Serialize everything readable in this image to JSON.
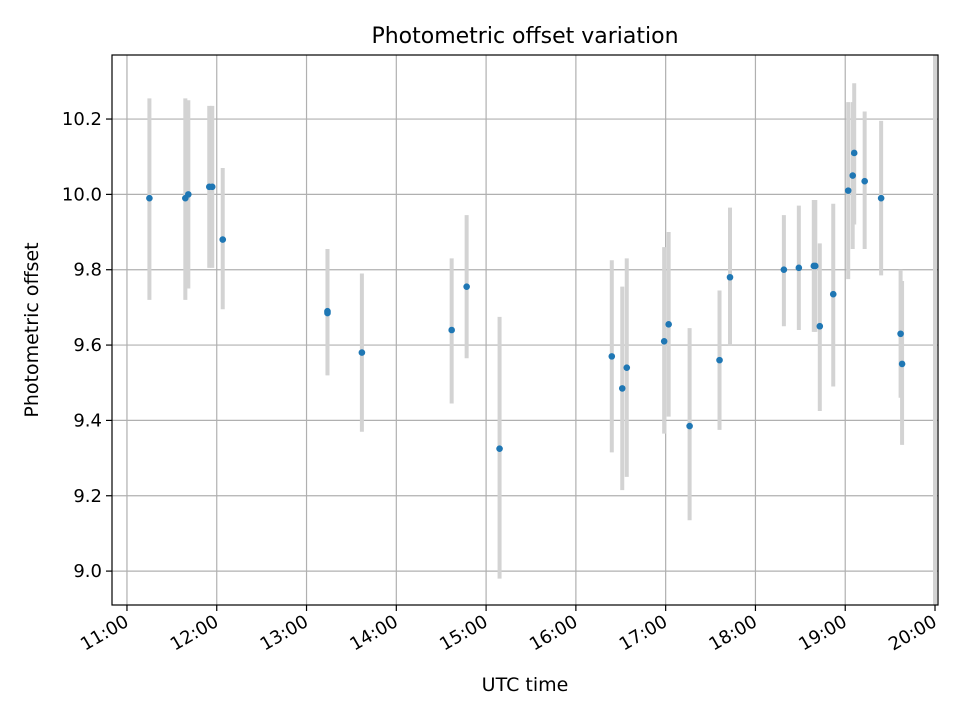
{
  "chart_data": {
    "type": "scatter",
    "title": "Photometric offset variation",
    "xlabel": "UTC time",
    "ylabel": "Photometric offset",
    "x_tick_labels": [
      "11:00",
      "12:00",
      "13:00",
      "14:00",
      "15:00",
      "16:00",
      "17:00",
      "18:00",
      "19:00",
      "20:00"
    ],
    "y_tick_labels": [
      "9.0",
      "9.2",
      "9.4",
      "9.6",
      "9.8",
      "10.0",
      "10.2"
    ],
    "xlim": [
      "10:50",
      "20:02"
    ],
    "ylim": [
      8.91,
      10.37
    ],
    "grid": true,
    "errorbar_color": "#d3d3d3",
    "marker_color": "#1f77b4",
    "points": [
      {
        "time": "11:15",
        "value": 9.99,
        "low": 9.72,
        "high": 10.255
      },
      {
        "time": "11:39",
        "value": 9.99,
        "low": 9.72,
        "high": 10.255
      },
      {
        "time": "11:41",
        "value": 10.0,
        "low": 9.75,
        "high": 10.25
      },
      {
        "time": "11:55",
        "value": 10.02,
        "low": 9.805,
        "high": 10.235
      },
      {
        "time": "11:57",
        "value": 10.02,
        "low": 9.805,
        "high": 10.235
      },
      {
        "time": "12:04",
        "value": 9.88,
        "low": 9.695,
        "high": 10.07
      },
      {
        "time": "13:14",
        "value": 9.69,
        "low": 9.52,
        "high": 9.855
      },
      {
        "time": "13:14",
        "value": 9.685,
        "low": 9.52,
        "high": 9.855
      },
      {
        "time": "13:37",
        "value": 9.58,
        "low": 9.37,
        "high": 9.79
      },
      {
        "time": "14:37",
        "value": 9.64,
        "low": 9.445,
        "high": 9.83
      },
      {
        "time": "14:47",
        "value": 9.755,
        "low": 9.565,
        "high": 9.945
      },
      {
        "time": "15:09",
        "value": 9.325,
        "low": 8.98,
        "high": 9.675
      },
      {
        "time": "16:24",
        "value": 9.57,
        "low": 9.315,
        "high": 9.825
      },
      {
        "time": "16:31",
        "value": 9.485,
        "low": 9.215,
        "high": 9.755
      },
      {
        "time": "16:34",
        "value": 9.54,
        "low": 9.25,
        "high": 9.83
      },
      {
        "time": "16:59",
        "value": 9.61,
        "low": 9.365,
        "high": 9.86
      },
      {
        "time": "17:02",
        "value": 9.655,
        "low": 9.41,
        "high": 9.9
      },
      {
        "time": "17:16",
        "value": 9.385,
        "low": 9.135,
        "high": 9.645
      },
      {
        "time": "17:36",
        "value": 9.56,
        "low": 9.375,
        "high": 9.745
      },
      {
        "time": "17:43",
        "value": 9.78,
        "low": 9.6,
        "high": 9.965
      },
      {
        "time": "18:19",
        "value": 9.8,
        "low": 9.65,
        "high": 9.945
      },
      {
        "time": "18:29",
        "value": 9.805,
        "low": 9.64,
        "high": 9.97
      },
      {
        "time": "18:39",
        "value": 9.81,
        "low": 9.635,
        "high": 9.985
      },
      {
        "time": "18:40",
        "value": 9.81,
        "low": 9.635,
        "high": 9.985
      },
      {
        "time": "18:43",
        "value": 9.65,
        "low": 9.425,
        "high": 9.87
      },
      {
        "time": "18:52",
        "value": 9.735,
        "low": 9.49,
        "high": 9.975
      },
      {
        "time": "19:02",
        "value": 10.01,
        "low": 9.775,
        "high": 10.245
      },
      {
        "time": "19:05",
        "value": 10.05,
        "low": 9.855,
        "high": 10.245
      },
      {
        "time": "19:06",
        "value": 10.11,
        "low": 9.92,
        "high": 10.295
      },
      {
        "time": "19:13",
        "value": 10.035,
        "low": 9.855,
        "high": 10.22
      },
      {
        "time": "19:24",
        "value": 9.99,
        "low": 9.785,
        "high": 10.195
      },
      {
        "time": "19:37",
        "value": 9.63,
        "low": 9.46,
        "high": 9.8
      },
      {
        "time": "19:38",
        "value": 9.55,
        "low": 9.335,
        "high": 9.77
      },
      {
        "time": "20:00",
        "value": null,
        "low": 8.91,
        "high": 10.37
      }
    ]
  }
}
